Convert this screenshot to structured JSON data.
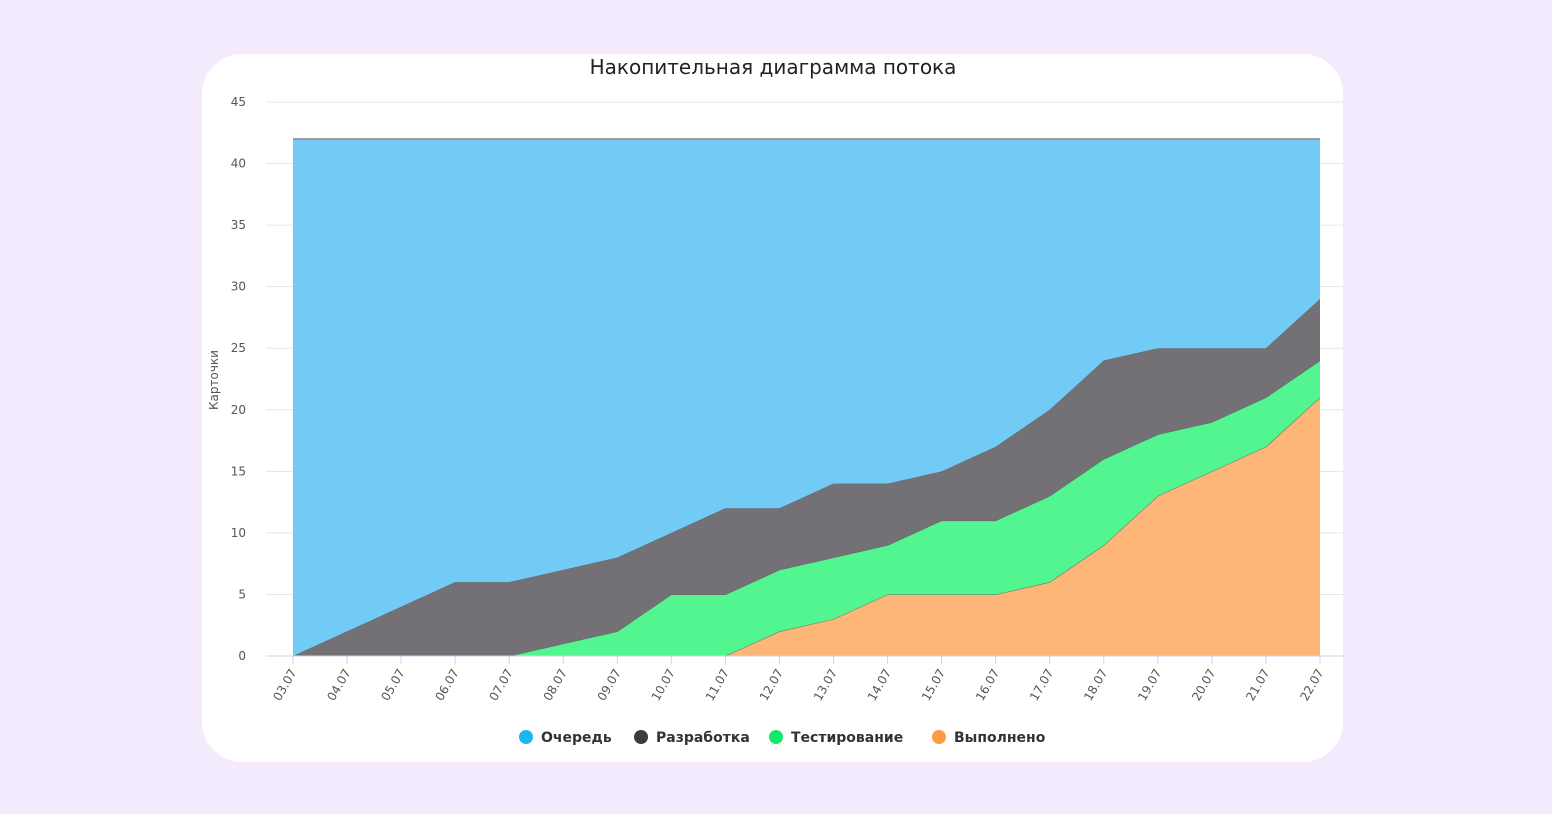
{
  "chart_data": {
    "type": "area",
    "stacked": true,
    "title": "Накопительная диаграмма потока",
    "xlabel": "",
    "ylabel": "Карточки",
    "ylim": [
      0,
      45
    ],
    "yticks": [
      0,
      5,
      10,
      15,
      20,
      25,
      30,
      35,
      40,
      45
    ],
    "grid": true,
    "legend_position": "bottom",
    "categories": [
      "03.07",
      "04.07",
      "05.07",
      "06.07",
      "07.07",
      "08.07",
      "09.07",
      "10.07",
      "11.07",
      "12.07",
      "13.07",
      "14.07",
      "15.07",
      "16.07",
      "17.07",
      "18.07",
      "19.07",
      "20.07",
      "21.07",
      "22.07"
    ],
    "series": [
      {
        "name": "Выполнено",
        "color": "#fc9b44",
        "fill": "#fdb678",
        "values": [
          0,
          0,
          0,
          0,
          0,
          0,
          0,
          0,
          0,
          2,
          3,
          5,
          5,
          5,
          6,
          9,
          13,
          15,
          17,
          21
        ]
      },
      {
        "name": "Тестирование",
        "color": "#10e96a",
        "fill": "#52f58f",
        "values": [
          0,
          0,
          0,
          0,
          0,
          1,
          2,
          5,
          5,
          5,
          5,
          4,
          6,
          6,
          7,
          7,
          5,
          4,
          4,
          3
        ]
      },
      {
        "name": "Разработка",
        "color": "#3a3a40",
        "fill": "#737175",
        "values": [
          0,
          2,
          4,
          6,
          6,
          6,
          6,
          5,
          7,
          5,
          6,
          5,
          4,
          6,
          7,
          8,
          7,
          6,
          4,
          5
        ]
      },
      {
        "name": "Очередь",
        "color": "#1eb6f2",
        "fill": "#71cbf5",
        "values": [
          42,
          40,
          38,
          36,
          36,
          35,
          34,
          32,
          30,
          30,
          28,
          28,
          27,
          25,
          22,
          18,
          17,
          17,
          17,
          13
        ]
      }
    ],
    "legend_order": [
      "Очередь",
      "Разработка",
      "Тестирование",
      "Выполнено"
    ]
  }
}
